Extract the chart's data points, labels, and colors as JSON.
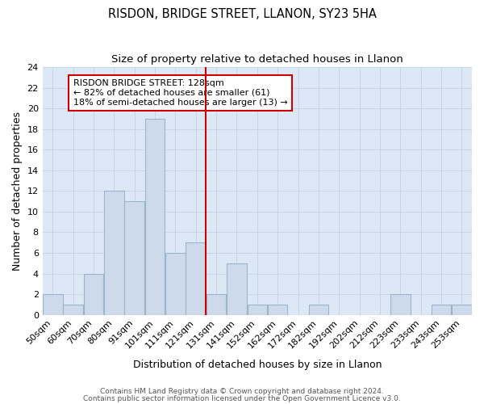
{
  "title": "RISDON, BRIDGE STREET, LLANON, SY23 5HA",
  "subtitle": "Size of property relative to detached houses in Llanon",
  "xlabel": "Distribution of detached houses by size in Llanon",
  "ylabel": "Number of detached properties",
  "categories": [
    "50sqm",
    "60sqm",
    "70sqm",
    "80sqm",
    "91sqm",
    "101sqm",
    "111sqm",
    "121sqm",
    "131sqm",
    "141sqm",
    "152sqm",
    "162sqm",
    "172sqm",
    "182sqm",
    "192sqm",
    "202sqm",
    "212sqm",
    "223sqm",
    "233sqm",
    "243sqm",
    "253sqm"
  ],
  "values": [
    2,
    1,
    4,
    12,
    11,
    19,
    6,
    7,
    2,
    5,
    1,
    1,
    0,
    1,
    0,
    0,
    0,
    2,
    0,
    1,
    1
  ],
  "bar_color": "#ccdaeb",
  "bar_edge_color": "#9ab4ce",
  "vline_color": "#cc0000",
  "annotation_text": "RISDON BRIDGE STREET: 128sqm\n← 82% of detached houses are smaller (61)\n18% of semi-detached houses are larger (13) →",
  "annotation_box_color": "#ffffff",
  "annotation_box_edge_color": "#cc0000",
  "ylim": [
    0,
    24
  ],
  "yticks": [
    0,
    2,
    4,
    6,
    8,
    10,
    12,
    14,
    16,
    18,
    20,
    22,
    24
  ],
  "grid_color": "#c8d4e4",
  "background_color": "#dce8f5",
  "footer_line1": "Contains HM Land Registry data © Crown copyright and database right 2024.",
  "footer_line2": "Contains public sector information licensed under the Open Government Licence v3.0.",
  "title_fontsize": 10.5,
  "subtitle_fontsize": 9.5,
  "axis_label_fontsize": 9,
  "tick_fontsize": 8,
  "footer_fontsize": 6.5
}
